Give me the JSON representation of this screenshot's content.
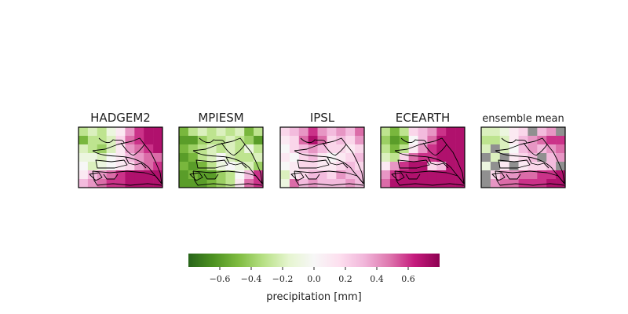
{
  "chart_data": {
    "type": "heatmap",
    "variable": "precipitation",
    "colorbar": {
      "label": "precipitation [mm]",
      "range": [
        -0.8,
        0.8
      ],
      "ticks": [
        -0.6,
        -0.4,
        -0.2,
        0.0,
        0.2,
        0.4,
        0.6
      ],
      "tick_labels": [
        "−0.6",
        "−0.4",
        "−0.2",
        "0.0",
        "0.2",
        "0.4",
        "0.6"
      ],
      "colormap": "PiYG_r",
      "orientation": "horizontal",
      "placement": "bottom-center"
    },
    "grid_rows": 7,
    "grid_cols": 9,
    "panels": [
      {
        "title": "HADGEM2",
        "values": [
          [
            -0.3,
            -0.2,
            -0.3,
            -0.1,
            0.1,
            0.4,
            0.6,
            0.7,
            0.7
          ],
          [
            -0.5,
            -0.3,
            -0.3,
            -0.2,
            0.2,
            0.5,
            0.6,
            0.7,
            0.7
          ],
          [
            -0.2,
            -0.3,
            -0.4,
            -0.2,
            0.1,
            0.4,
            0.5,
            0.6,
            0.7
          ],
          [
            -0.1,
            -0.1,
            -0.2,
            0.0,
            0.1,
            0.3,
            0.4,
            0.5,
            0.5
          ],
          [
            0.0,
            -0.2,
            -0.1,
            0.0,
            0.1,
            0.2,
            0.4,
            0.5,
            0.6
          ],
          [
            0.1,
            0.3,
            0.4,
            0.5,
            0.6,
            0.7,
            0.7,
            0.7,
            0.7
          ],
          [
            0.3,
            0.4,
            0.5,
            0.6,
            0.6,
            0.7,
            0.7,
            0.7,
            0.7
          ]
        ]
      },
      {
        "title": "MPIESM",
        "values": [
          [
            -0.5,
            -0.3,
            -0.2,
            -0.3,
            -0.2,
            -0.3,
            -0.2,
            -0.5,
            -0.3
          ],
          [
            -0.6,
            -0.6,
            -0.4,
            -0.3,
            -0.3,
            -0.2,
            -0.3,
            -0.4,
            -0.6
          ],
          [
            -0.5,
            -0.4,
            -0.3,
            -0.2,
            -0.3,
            -0.2,
            -0.3,
            -0.1,
            -0.3
          ],
          [
            -0.6,
            -0.5,
            -0.3,
            -0.2,
            0.0,
            -0.2,
            -0.3,
            -0.3,
            -0.2
          ],
          [
            -0.5,
            -0.6,
            -0.5,
            -0.3,
            -0.1,
            0.0,
            -0.1,
            -0.2,
            -0.4
          ],
          [
            -0.6,
            -0.5,
            -0.6,
            -0.6,
            -0.4,
            -0.3,
            0.0,
            0.3,
            0.6
          ],
          [
            -0.6,
            -0.6,
            -0.6,
            -0.5,
            -0.4,
            -0.3,
            0.1,
            0.5,
            0.6
          ]
        ]
      },
      {
        "title": "IPSL",
        "values": [
          [
            0.2,
            0.3,
            0.4,
            0.6,
            0.4,
            0.3,
            0.4,
            0.3,
            0.5
          ],
          [
            0.1,
            0.2,
            0.5,
            0.7,
            0.5,
            0.2,
            0.3,
            0.2,
            0.4
          ],
          [
            0.0,
            0.2,
            0.3,
            0.4,
            0.3,
            0.2,
            0.2,
            0.1,
            0.2
          ],
          [
            0.1,
            0.0,
            0.2,
            0.3,
            0.1,
            0.0,
            0.1,
            0.2,
            0.3
          ],
          [
            0.0,
            0.1,
            0.2,
            0.2,
            0.1,
            0.1,
            0.2,
            0.3,
            0.2
          ],
          [
            -0.2,
            0.1,
            0.2,
            0.3,
            0.3,
            0.2,
            0.4,
            0.3,
            0.3
          ],
          [
            -0.1,
            0.5,
            0.3,
            0.4,
            0.3,
            0.3,
            0.3,
            0.4,
            0.3
          ]
        ]
      },
      {
        "title": "ECEARTH",
        "values": [
          [
            -0.3,
            -0.5,
            -0.3,
            0.2,
            0.3,
            0.4,
            0.6,
            0.7,
            0.7
          ],
          [
            -0.4,
            -0.6,
            -0.5,
            0.0,
            0.3,
            0.5,
            0.7,
            0.7,
            0.7
          ],
          [
            -0.3,
            -0.5,
            -0.3,
            0.1,
            0.4,
            0.6,
            0.7,
            0.7,
            0.7
          ],
          [
            -0.2,
            -0.3,
            0.2,
            0.5,
            0.6,
            0.6,
            0.7,
            0.7,
            0.7
          ],
          [
            0.1,
            0.4,
            0.6,
            0.7,
            0.7,
            0.2,
            0.3,
            0.7,
            0.7
          ],
          [
            0.4,
            0.6,
            0.7,
            0.7,
            0.7,
            0.7,
            0.7,
            0.7,
            0.7
          ],
          [
            0.5,
            0.7,
            0.7,
            0.7,
            0.7,
            0.7,
            0.7,
            0.7,
            0.7
          ]
        ]
      },
      {
        "title": "ensemble mean",
        "values": [
          [
            -0.2,
            -0.2,
            -0.1,
            0.1,
            0.2,
            null,
            0.3,
            0.4,
            null
          ],
          [
            -0.3,
            -0.3,
            -0.2,
            0.1,
            0.3,
            0.4,
            0.5,
            0.6,
            0.6
          ],
          [
            -0.2,
            null,
            -0.2,
            0.0,
            0.3,
            0.4,
            0.3,
            0.4,
            0.5
          ],
          [
            null,
            -0.2,
            null,
            0.1,
            0.2,
            0.3,
            null,
            0.3,
            0.4
          ],
          [
            -0.1,
            null,
            0.1,
            null,
            0.1,
            0.2,
            0.2,
            0.3,
            null
          ],
          [
            null,
            0.2,
            0.4,
            0.4,
            0.5,
            0.5,
            0.6,
            0.6,
            0.7
          ],
          [
            null,
            0.4,
            0.5,
            0.5,
            0.6,
            0.6,
            0.6,
            0.7,
            0.7
          ]
        ]
      }
    ],
    "masked_color": "#909090"
  }
}
